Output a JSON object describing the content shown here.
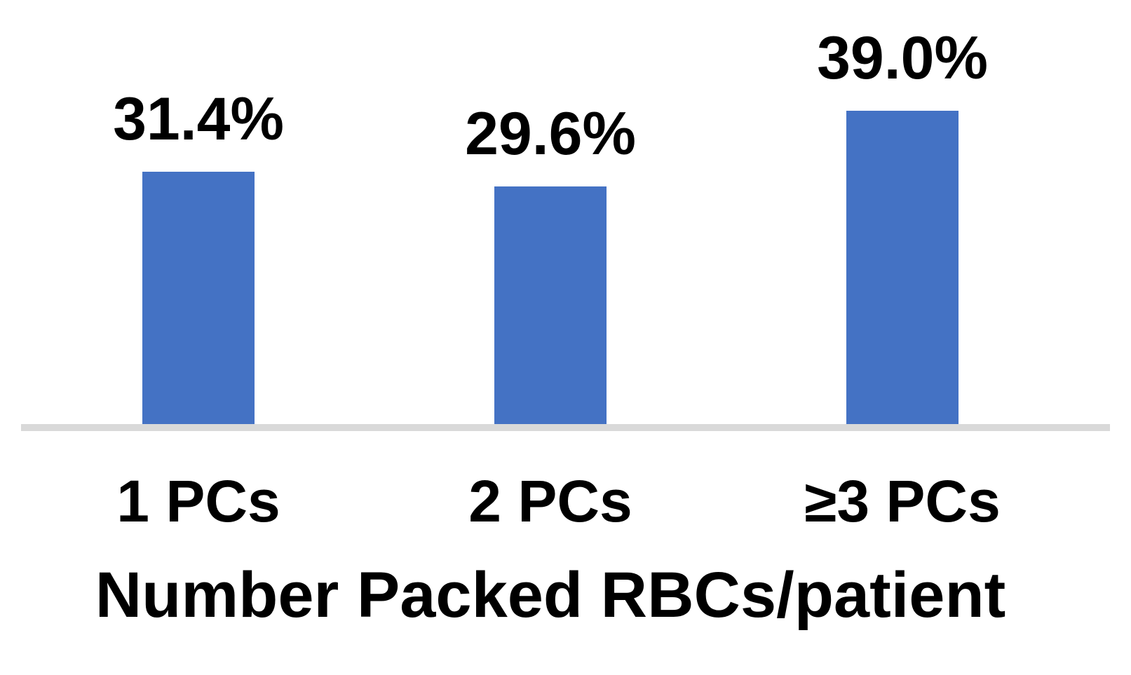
{
  "chart_data": {
    "type": "bar",
    "categories": [
      "1 PCs",
      "2 PCs",
      "≥3 PCs"
    ],
    "values": [
      31.4,
      29.6,
      39.0
    ],
    "value_labels": [
      "31.4%",
      "29.6%",
      "39.0%"
    ],
    "title": "",
    "xlabel": "Number Packed RBCs/patient",
    "ylabel": "",
    "ylim": [
      0,
      39.0
    ],
    "grid": false,
    "legend": false,
    "y_axis_visible": false,
    "colors": {
      "bar": "#4472C4",
      "axis_line": "#D9D9D9",
      "text": "#000000",
      "background": "#FFFFFF"
    }
  }
}
